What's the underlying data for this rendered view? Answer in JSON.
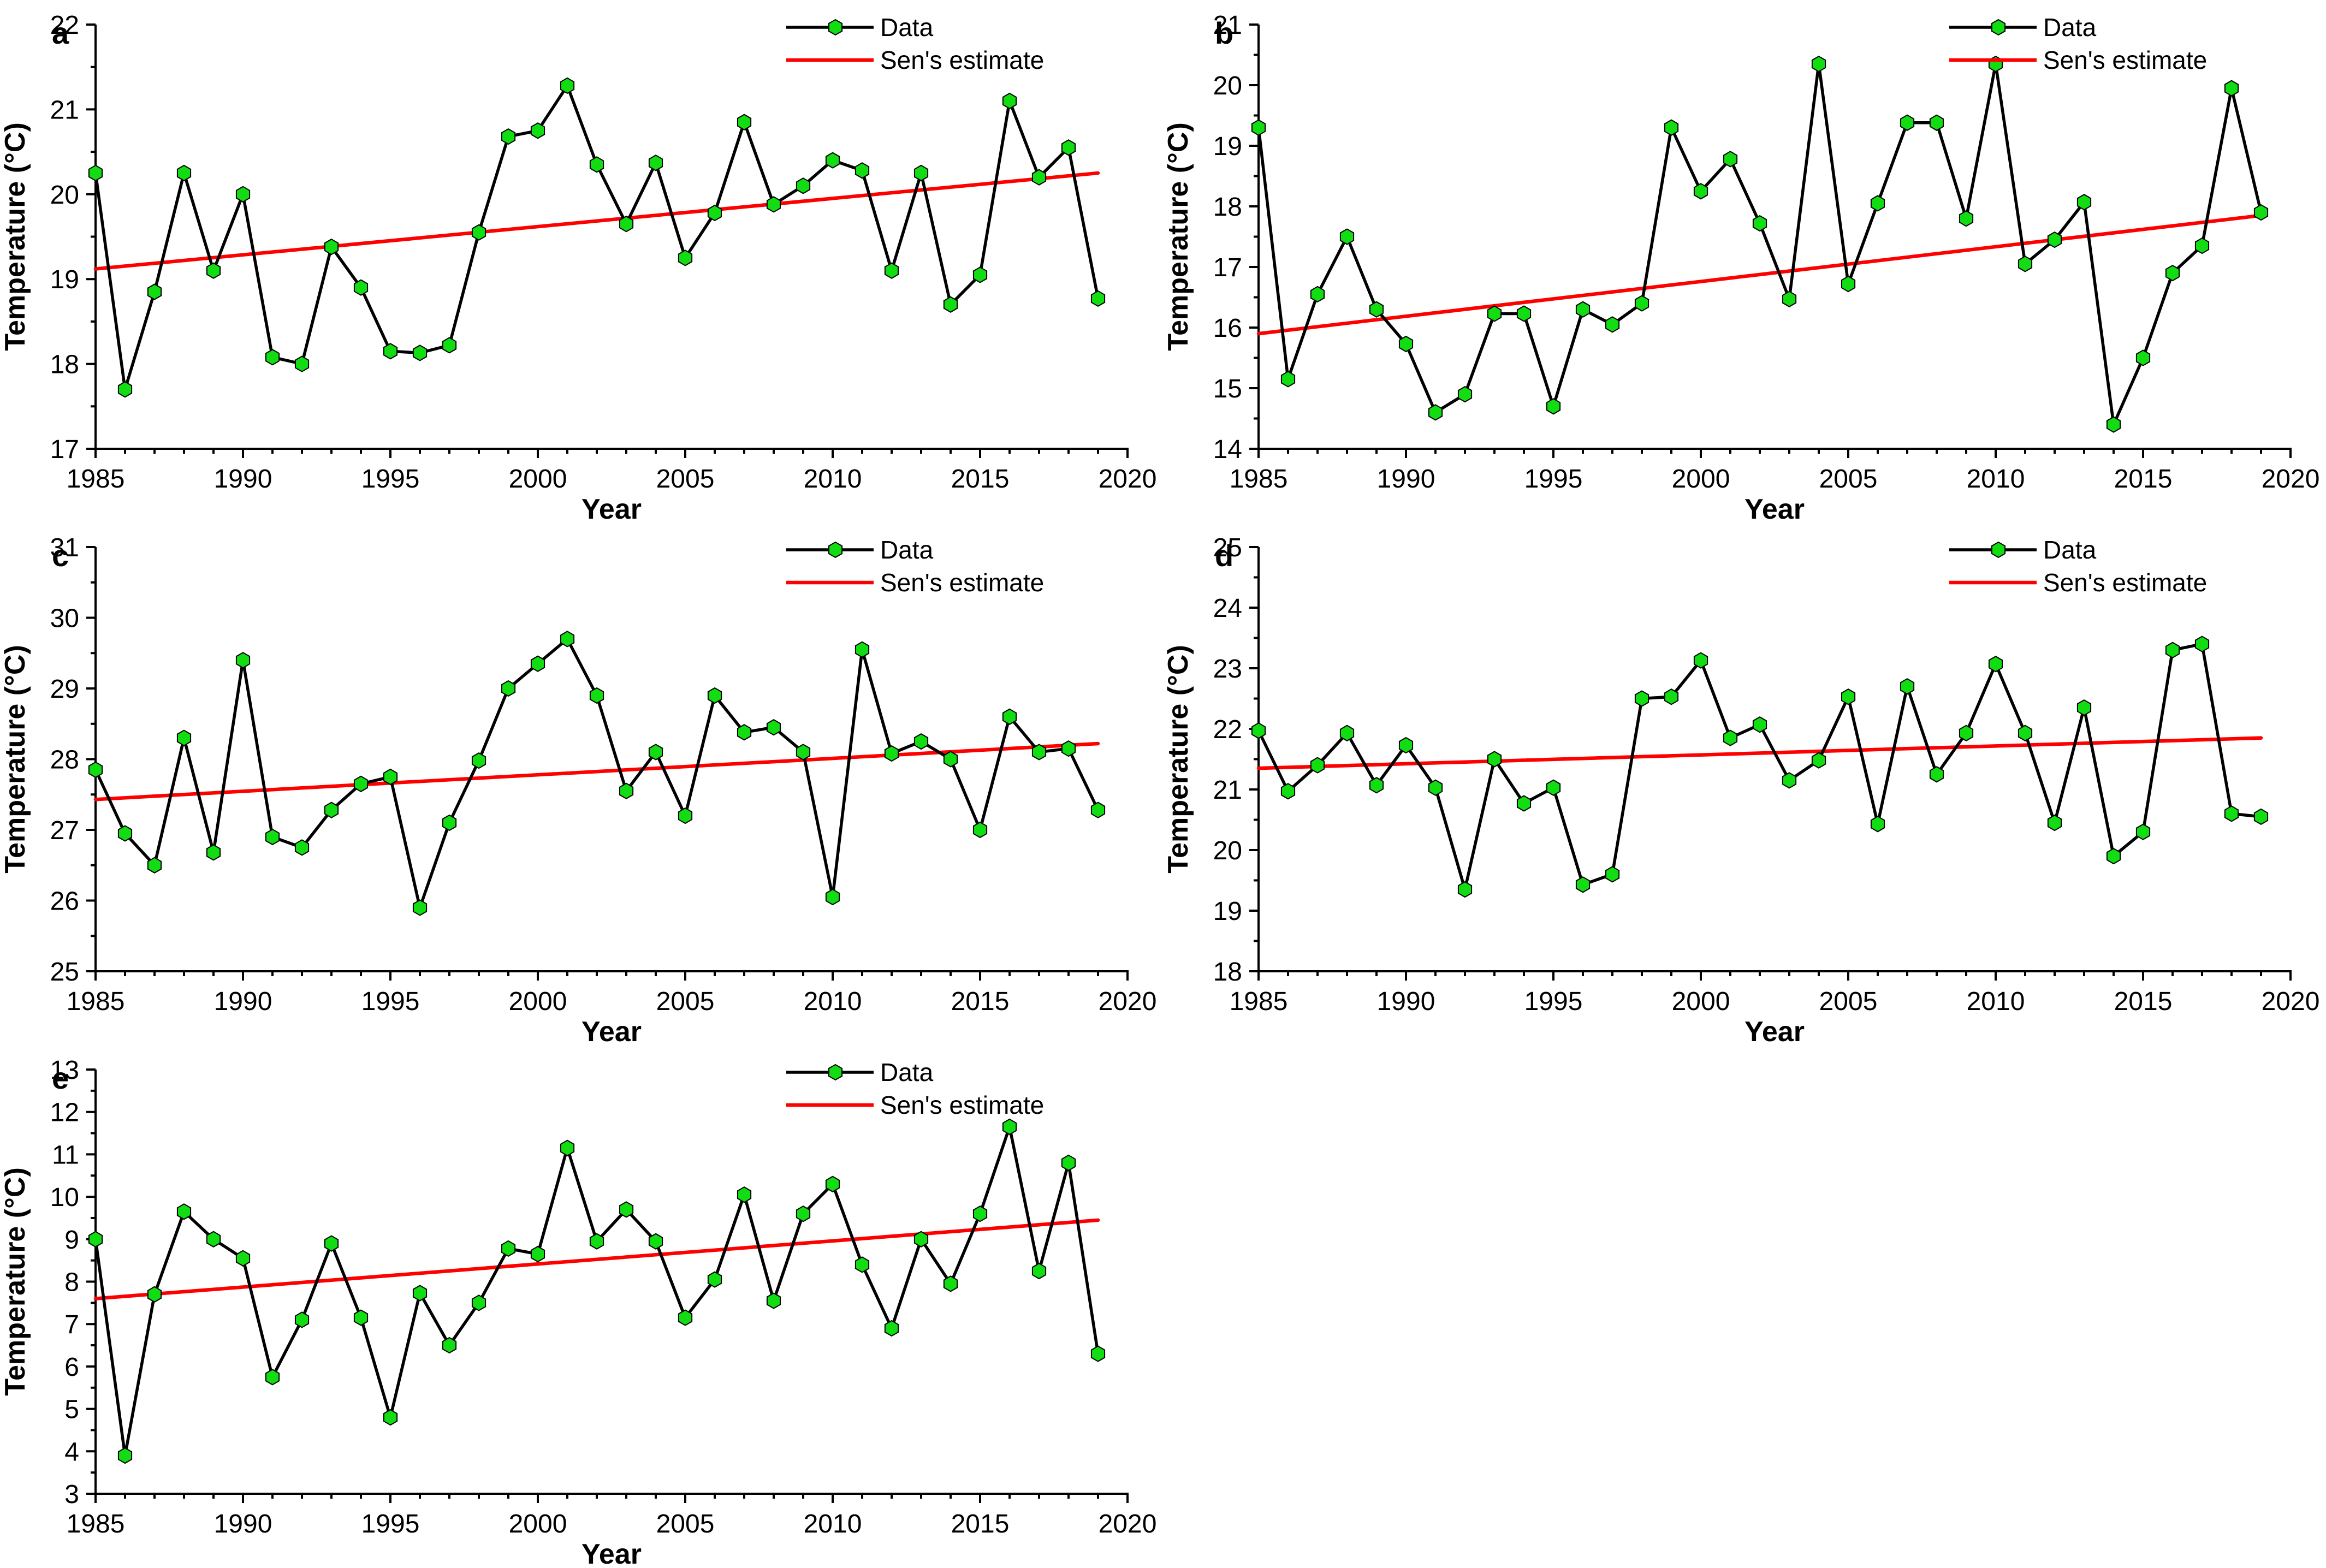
{
  "figure": {
    "background": "#ffffff",
    "xlabel": "Year",
    "ylabel": "Temperature (°C)",
    "legend": {
      "position": "top-right",
      "data_label": "Data",
      "sen_label": "Sen's estimate"
    },
    "colors": {
      "data_line": "#000000",
      "marker_fill": "#12dd12",
      "marker_edge": "#000000",
      "sen_line": "#ff0000",
      "text": "#000000",
      "axis": "#000000"
    }
  },
  "years": [
    1985,
    1986,
    1987,
    1988,
    1989,
    1990,
    1991,
    1992,
    1993,
    1994,
    1995,
    1996,
    1997,
    1998,
    1999,
    2000,
    2001,
    2002,
    2003,
    2004,
    2005,
    2006,
    2007,
    2008,
    2009,
    2010,
    2011,
    2012,
    2013,
    2014,
    2015,
    2016,
    2017,
    2018,
    2019
  ],
  "chart_data": [
    {
      "type": "line",
      "panel_letter": "a",
      "grid": {
        "col": 0,
        "row": 0
      },
      "title": "",
      "xlabel": "Year",
      "ylabel": "Temperature (°C)",
      "xlim": [
        1985,
        2020
      ],
      "ylim": [
        17,
        22
      ],
      "xtick_step": 5,
      "xminor_step": 1,
      "ytick_step": 1,
      "yminor_step": 0.5,
      "legend_entries": [
        "Data",
        "Sen's estimate"
      ],
      "series": [
        {
          "name": "Data",
          "values": [
            20.25,
            17.7,
            18.85,
            20.25,
            19.1,
            20.0,
            18.08,
            18.0,
            19.38,
            18.9,
            18.15,
            18.13,
            18.22,
            19.55,
            20.68,
            20.75,
            21.28,
            20.35,
            19.65,
            20.37,
            19.25,
            19.78,
            20.85,
            19.88,
            20.1,
            20.4,
            20.28,
            19.1,
            20.25,
            18.7,
            19.05,
            21.1,
            20.2,
            20.55,
            18.77
          ]
        },
        {
          "name": "Sen's estimate",
          "x": [
            1985,
            2019
          ],
          "y": [
            19.12,
            20.25
          ]
        }
      ]
    },
    {
      "type": "line",
      "panel_letter": "b",
      "grid": {
        "col": 1,
        "row": 0
      },
      "title": "",
      "xlabel": "Year",
      "ylabel": "Temperature (°C)",
      "xlim": [
        1985,
        2020
      ],
      "ylim": [
        14,
        21
      ],
      "xtick_step": 5,
      "xminor_step": 1,
      "ytick_step": 1,
      "yminor_step": 0.5,
      "legend_entries": [
        "Data",
        "Sen's estimate"
      ],
      "series": [
        {
          "name": "Data",
          "values": [
            19.3,
            15.15,
            16.55,
            17.5,
            16.3,
            15.73,
            14.6,
            14.9,
            16.23,
            16.23,
            14.7,
            16.3,
            16.05,
            16.4,
            19.3,
            18.25,
            18.78,
            17.72,
            16.47,
            20.35,
            16.72,
            18.05,
            19.38,
            19.38,
            17.8,
            20.35,
            17.05,
            17.45,
            18.07,
            14.4,
            15.5,
            16.9,
            17.35,
            19.95,
            17.9
          ]
        },
        {
          "name": "Sen's estimate",
          "x": [
            1985,
            2019
          ],
          "y": [
            15.9,
            17.85
          ]
        }
      ]
    },
    {
      "type": "line",
      "panel_letter": "c",
      "grid": {
        "col": 0,
        "row": 1
      },
      "title": "",
      "xlabel": "Year",
      "ylabel": "Temperature (°C)",
      "xlim": [
        1985,
        2020
      ],
      "ylim": [
        25,
        31
      ],
      "xtick_step": 5,
      "xminor_step": 1,
      "ytick_step": 1,
      "yminor_step": 0.5,
      "legend_entries": [
        "Data",
        "Sen's estimate"
      ],
      "series": [
        {
          "name": "Data",
          "values": [
            27.85,
            26.95,
            26.5,
            28.3,
            26.68,
            29.4,
            26.9,
            26.75,
            27.28,
            27.65,
            27.75,
            25.9,
            27.1,
            27.98,
            29.0,
            29.35,
            29.7,
            28.9,
            27.55,
            28.1,
            27.2,
            28.9,
            28.38,
            28.45,
            28.1,
            26.05,
            29.55,
            28.08,
            28.25,
            28.0,
            27.0,
            28.6,
            28.1,
            28.15,
            27.28
          ]
        },
        {
          "name": "Sen's estimate",
          "x": [
            1985,
            2019
          ],
          "y": [
            27.43,
            28.22
          ]
        }
      ]
    },
    {
      "type": "line",
      "panel_letter": "d",
      "grid": {
        "col": 1,
        "row": 1
      },
      "title": "",
      "xlabel": "Year",
      "ylabel": "Temperature (°C)",
      "xlim": [
        1985,
        2020
      ],
      "ylim": [
        18,
        25
      ],
      "xtick_step": 5,
      "xminor_step": 1,
      "ytick_step": 1,
      "yminor_step": 0.5,
      "legend_entries": [
        "Data",
        "Sen's estimate"
      ],
      "series": [
        {
          "name": "Data",
          "values": [
            21.97,
            20.97,
            21.4,
            21.93,
            21.07,
            21.73,
            21.03,
            19.35,
            21.5,
            20.77,
            21.03,
            19.43,
            19.6,
            22.5,
            22.53,
            23.13,
            21.85,
            22.07,
            21.15,
            21.48,
            22.53,
            20.43,
            22.7,
            21.25,
            21.93,
            23.07,
            21.93,
            20.45,
            22.35,
            19.9,
            20.3,
            23.3,
            23.4,
            20.6,
            20.55
          ]
        },
        {
          "name": "Sen's estimate",
          "x": [
            1985,
            2019
          ],
          "y": [
            21.35,
            21.85
          ]
        }
      ]
    },
    {
      "type": "line",
      "panel_letter": "e",
      "grid": {
        "col": 0,
        "row": 2
      },
      "title": "",
      "xlabel": "Year",
      "ylabel": "Temperature (°C)",
      "xlim": [
        1985,
        2020
      ],
      "ylim": [
        3,
        13
      ],
      "xtick_step": 5,
      "xminor_step": 1,
      "ytick_step": 1,
      "yminor_step": 0.5,
      "legend_entries": [
        "Data",
        "Sen's estimate"
      ],
      "series": [
        {
          "name": "Data",
          "values": [
            9.0,
            3.9,
            7.7,
            9.65,
            9.0,
            8.55,
            5.75,
            7.1,
            8.9,
            7.15,
            4.8,
            7.73,
            6.5,
            7.5,
            8.78,
            8.65,
            11.15,
            8.95,
            9.7,
            8.95,
            7.15,
            8.05,
            10.05,
            7.55,
            9.6,
            10.3,
            8.4,
            6.9,
            9.0,
            7.95,
            9.6,
            11.65,
            8.25,
            10.8,
            6.3
          ]
        },
        {
          "name": "Sen's estimate",
          "x": [
            1985,
            2019
          ],
          "y": [
            7.6,
            9.45
          ]
        }
      ]
    }
  ]
}
